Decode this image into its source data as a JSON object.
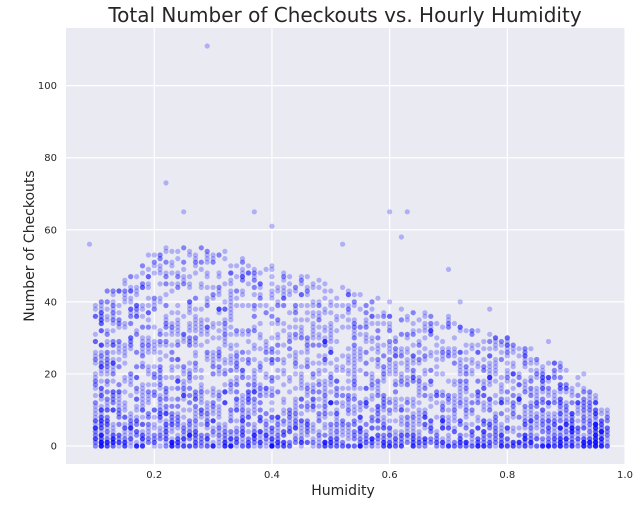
{
  "chart_data": {
    "type": "scatter",
    "title": "Total Number of Checkouts vs. Hourly Humidity",
    "xlabel": "Humidity",
    "ylabel": "Number of Checkouts",
    "xlim": [
      0.05,
      1.0
    ],
    "ylim": [
      -5,
      116
    ],
    "xticks": [
      0.2,
      0.4,
      0.6,
      0.8,
      1.0
    ],
    "xtick_labels": [
      "0.2",
      "0.4",
      "0.6",
      "0.8",
      "1.0"
    ],
    "yticks": [
      0,
      20,
      40,
      60,
      80,
      100
    ],
    "ytick_labels": [
      "0",
      "20",
      "40",
      "60",
      "80",
      "100"
    ],
    "grid": true,
    "marker_color": "#0000ff",
    "marker_alpha": 0.25,
    "background_color": "#eaeaf2",
    "grid_color": "#ffffff",
    "series": [
      {
        "name": "Checkouts",
        "outliers": [
          [
            0.29,
            111
          ],
          [
            0.22,
            73
          ],
          [
            0.09,
            56
          ],
          [
            0.25,
            65
          ],
          [
            0.37,
            65
          ],
          [
            0.6,
            65
          ],
          [
            0.63,
            65
          ],
          [
            0.62,
            58
          ],
          [
            0.4,
            61
          ],
          [
            0.52,
            56
          ],
          [
            0.7,
            49
          ],
          [
            0.72,
            40
          ],
          [
            0.77,
            38
          ],
          [
            0.87,
            29
          ],
          [
            0.93,
            20
          ]
        ],
        "cloud_envelope": [
          {
            "x": 0.1,
            "ymax": 40
          },
          {
            "x": 0.15,
            "ymax": 47
          },
          {
            "x": 0.2,
            "ymax": 55
          },
          {
            "x": 0.25,
            "ymax": 56
          },
          {
            "x": 0.3,
            "ymax": 55
          },
          {
            "x": 0.35,
            "ymax": 52
          },
          {
            "x": 0.4,
            "ymax": 50
          },
          {
            "x": 0.45,
            "ymax": 48
          },
          {
            "x": 0.5,
            "ymax": 45
          },
          {
            "x": 0.55,
            "ymax": 42
          },
          {
            "x": 0.6,
            "ymax": 40
          },
          {
            "x": 0.65,
            "ymax": 38
          },
          {
            "x": 0.7,
            "ymax": 36
          },
          {
            "x": 0.75,
            "ymax": 33
          },
          {
            "x": 0.8,
            "ymax": 30
          },
          {
            "x": 0.85,
            "ymax": 26
          },
          {
            "x": 0.9,
            "ymax": 22
          },
          {
            "x": 0.95,
            "ymax": 14
          },
          {
            "x": 0.97,
            "ymax": 10
          }
        ],
        "x_range": [
          0.1,
          0.97
        ],
        "point_count": 3600
      }
    ]
  }
}
